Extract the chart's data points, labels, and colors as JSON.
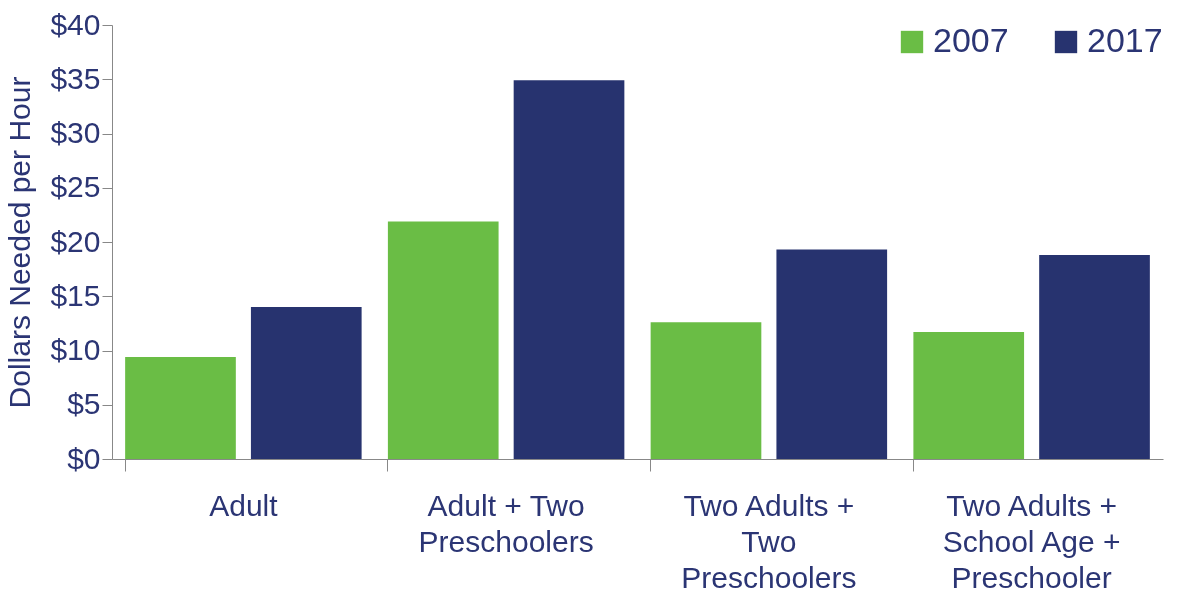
{
  "chart_data": {
    "type": "bar",
    "ylabel": "Dollars Needed per Hour",
    "categories": [
      "Adult",
      "Adult + Two Preschoolers",
      "Two Adults + Two Preschoolers",
      "Two Adults + School Age + Preschooler"
    ],
    "series": [
      {
        "name": "2007",
        "color": "#6abd45",
        "values": [
          9.4,
          21.9,
          12.6,
          11.7
        ]
      },
      {
        "name": "2017",
        "color": "#27336f",
        "values": [
          14.0,
          34.9,
          19.3,
          18.8
        ]
      }
    ],
    "ylim": [
      0,
      40
    ],
    "yticks": [
      {
        "value": 0,
        "label": "$0"
      },
      {
        "value": 5,
        "label": "$5"
      },
      {
        "value": 10,
        "label": "$10"
      },
      {
        "value": 15,
        "label": "$15"
      },
      {
        "value": 20,
        "label": "$20"
      },
      {
        "value": 25,
        "label": "$25"
      },
      {
        "value": 30,
        "label": "$30"
      },
      {
        "value": 35,
        "label": "$35"
      },
      {
        "value": 40,
        "label": "$40"
      }
    ],
    "grid": false,
    "legend": "top right"
  }
}
